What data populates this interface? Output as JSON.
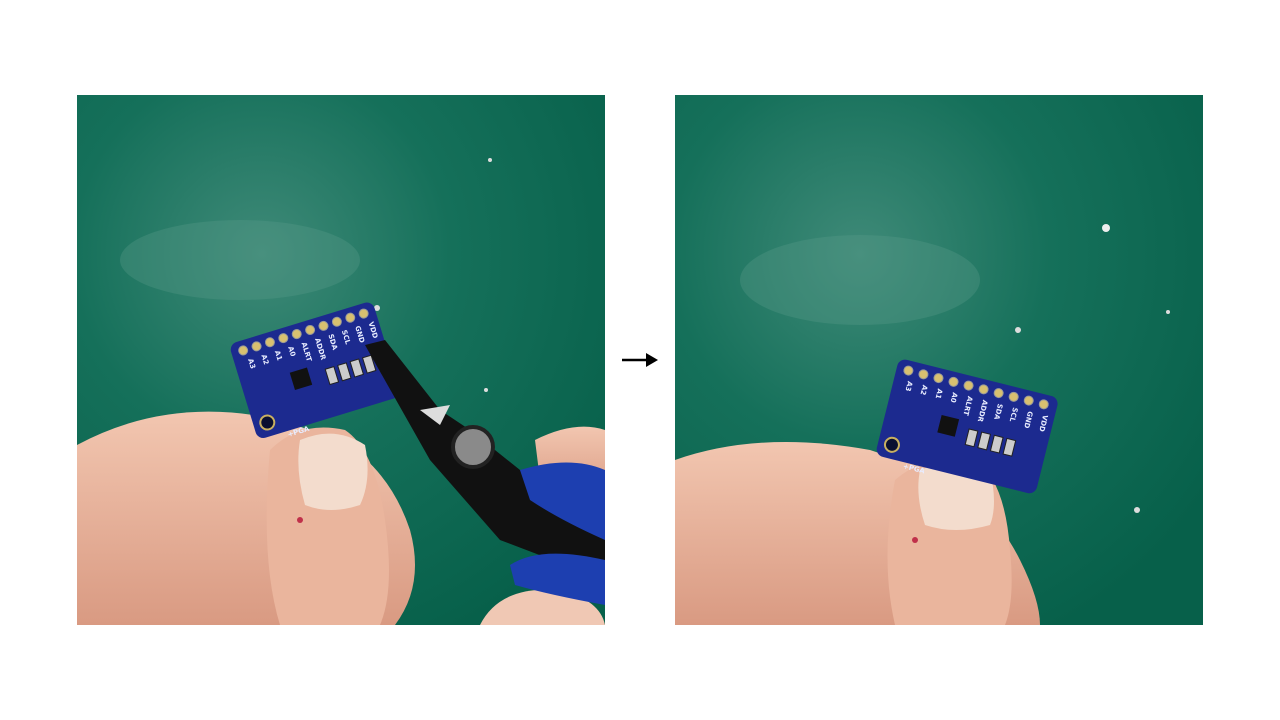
{
  "board_pins": [
    "A3",
    "A2",
    "A1",
    "A0",
    "ALRT",
    "ADDR",
    "SDA",
    "SCL",
    "GND",
    "VDD"
  ],
  "board_label": "+PGA"
}
